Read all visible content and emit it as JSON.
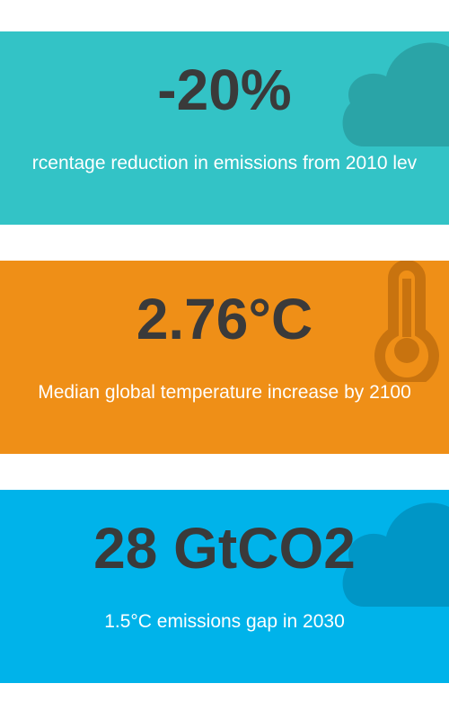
{
  "cards": [
    {
      "value": "-20%",
      "caption": "rcentage reduction in emissions from 2010 lev"
    },
    {
      "value": "2.76°C",
      "caption": "Median global temperature increase by 2100"
    },
    {
      "value": "28 GtCO2",
      "caption": "1.5°C emissions gap in 2030"
    }
  ]
}
